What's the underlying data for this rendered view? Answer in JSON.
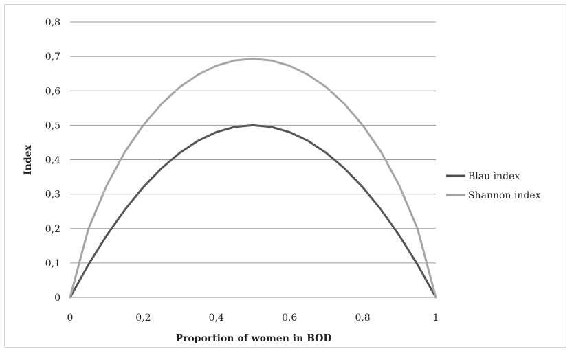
{
  "chart_data": {
    "type": "line",
    "title": "",
    "xlabel": "Proportion of women in BOD",
    "ylabel": "Index",
    "xlim": [
      0,
      1
    ],
    "ylim": [
      0,
      0.8
    ],
    "x_ticks": [
      0,
      0.2,
      0.4,
      0.6,
      0.8,
      1
    ],
    "x_tick_labels": [
      "0",
      "0,2",
      "0,4",
      "0,6",
      "0,8",
      "1"
    ],
    "y_ticks": [
      0,
      0.1,
      0.2,
      0.3,
      0.4,
      0.5,
      0.6,
      0.7,
      0.8
    ],
    "y_tick_labels": [
      "0",
      "0,1",
      "0,2",
      "0,3",
      "0,4",
      "0,5",
      "0,6",
      "0,7",
      "0,8"
    ],
    "grid": "horizontal",
    "legend_position": "right",
    "x": [
      0,
      0.05,
      0.1,
      0.15,
      0.2,
      0.25,
      0.3,
      0.35,
      0.4,
      0.45,
      0.5,
      0.55,
      0.6,
      0.65,
      0.7,
      0.75,
      0.8,
      0.85,
      0.9,
      0.95,
      1
    ],
    "series": [
      {
        "name": "Blau index",
        "color": "#555555",
        "values": [
          0,
          0.095,
          0.18,
          0.255,
          0.32,
          0.375,
          0.42,
          0.455,
          0.48,
          0.495,
          0.5,
          0.495,
          0.48,
          0.455,
          0.42,
          0.375,
          0.32,
          0.255,
          0.18,
          0.095,
          0
        ]
      },
      {
        "name": "Shannon index",
        "color": "#a6a6a6",
        "values": [
          0,
          0.199,
          0.325,
          0.423,
          0.5,
          0.562,
          0.611,
          0.647,
          0.673,
          0.688,
          0.693,
          0.688,
          0.673,
          0.647,
          0.611,
          0.562,
          0.5,
          0.423,
          0.325,
          0.199,
          0
        ]
      }
    ]
  }
}
